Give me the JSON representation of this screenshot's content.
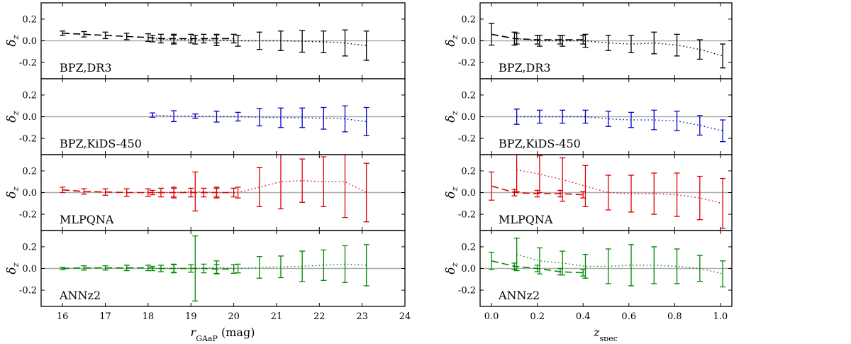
{
  "figure": {
    "left_xlabel_main": "r",
    "left_xlabel_sub": "GAaP",
    "left_xlabel_unit": " (mag)",
    "right_xlabel_main": "z",
    "right_xlabel_sub": "spec",
    "ylabel_main": "δ",
    "ylabel_sub": "z"
  },
  "chart_data": [
    {
      "type": "line",
      "panel": "left",
      "x_range": [
        15.5,
        24
      ],
      "y_range": [
        -0.35,
        0.35
      ],
      "x_ticks": [
        "16",
        "17",
        "18",
        "19",
        "20",
        "21",
        "22",
        "23",
        "24"
      ],
      "x_tick_values": [
        16,
        17,
        18,
        19,
        20,
        21,
        22,
        23,
        24
      ],
      "y_ticks": [
        "0.2",
        "0.0",
        "-0.2"
      ],
      "y_tick_values": [
        0.2,
        0.0,
        -0.2
      ],
      "reference_line": 0,
      "rows": [
        {
          "label": "BPZ,DR3",
          "color": "#000000",
          "dashed": {
            "x": [
              16.0,
              16.5,
              17.0,
              17.5,
              18.0,
              18.3,
              18.6,
              19.0,
              19.3,
              19.6,
              20.0
            ],
            "y": [
              0.07,
              0.06,
              0.05,
              0.04,
              0.03,
              0.02,
              0.02,
              0.02,
              0.02,
              0.02,
              0.02
            ],
            "err": [
              0.02,
              0.025,
              0.03,
              0.03,
              0.035,
              0.04,
              0.04,
              0.04,
              0.04,
              0.04,
              0.04
            ]
          },
          "dotted": {
            "x": [
              18.1,
              18.6,
              19.1,
              19.6,
              20.1,
              20.6,
              21.1,
              21.6,
              22.1,
              22.6,
              23.1
            ],
            "y": [
              0.02,
              0.01,
              0.01,
              0.005,
              0.0,
              0.0,
              0.0,
              -0.005,
              -0.01,
              -0.02,
              -0.045
            ],
            "err": [
              0.03,
              0.04,
              0.04,
              0.05,
              0.05,
              0.08,
              0.09,
              0.1,
              0.1,
              0.12,
              0.135
            ]
          }
        },
        {
          "label": "BPZ,KiDS-450",
          "color": "#0000cc",
          "dotted": {
            "x": [
              18.1,
              18.6,
              19.1,
              19.6,
              20.1,
              20.6,
              21.1,
              21.6,
              22.1,
              22.6,
              23.1
            ],
            "y": [
              0.015,
              0.005,
              0.005,
              0.0,
              0.0,
              -0.005,
              -0.01,
              -0.01,
              -0.015,
              -0.02,
              -0.045
            ],
            "err": [
              0.02,
              0.05,
              0.02,
              0.05,
              0.04,
              0.08,
              0.09,
              0.09,
              0.1,
              0.12,
              0.13
            ]
          }
        },
        {
          "label": "MLPQNA",
          "color": "#dd0000",
          "dashed": {
            "x": [
              16.0,
              16.5,
              17.0,
              17.5,
              18.0,
              18.3,
              18.6,
              19.0,
              19.3,
              19.6,
              20.0
            ],
            "y": [
              0.025,
              0.01,
              0.005,
              0.0,
              0.0,
              0.0,
              0.0,
              0.0,
              0.0,
              0.0,
              0.0
            ],
            "err": [
              0.025,
              0.025,
              0.03,
              0.035,
              0.035,
              0.04,
              0.04,
              0.04,
              0.04,
              0.04,
              0.04
            ]
          },
          "dotted": {
            "x": [
              18.1,
              18.6,
              19.1,
              19.6,
              20.1,
              20.6,
              21.1,
              21.6,
              22.1,
              22.6,
              23.1
            ],
            "y": [
              0.0,
              0.0,
              0.01,
              0.0,
              0.0,
              0.05,
              0.1,
              0.11,
              0.1,
              0.1,
              0.0
            ],
            "err": [
              0.02,
              0.05,
              0.18,
              0.05,
              0.05,
              0.18,
              0.25,
              0.2,
              0.23,
              0.33,
              0.27
            ]
          }
        },
        {
          "label": "ANNz2",
          "color": "#008800",
          "dashed": {
            "x": [
              16.0,
              16.5,
              17.0,
              17.5,
              18.0,
              18.3,
              18.6,
              19.0,
              19.3,
              19.6,
              20.0
            ],
            "y": [
              0.0,
              0.005,
              0.005,
              0.005,
              0.005,
              0.0,
              0.0,
              0.0,
              0.0,
              -0.005,
              -0.005
            ],
            "err": [
              0.01,
              0.02,
              0.02,
              0.025,
              0.025,
              0.03,
              0.035,
              0.035,
              0.04,
              0.04,
              0.04
            ]
          },
          "dotted": {
            "x": [
              18.1,
              18.6,
              19.1,
              19.6,
              20.1,
              20.6,
              21.1,
              21.6,
              22.1,
              22.6,
              23.1
            ],
            "y": [
              0.0,
              0.0,
              0.0,
              0.01,
              0.0,
              0.01,
              0.015,
              0.02,
              0.03,
              0.04,
              0.03
            ],
            "err": [
              0.02,
              0.04,
              0.3,
              0.06,
              0.04,
              0.1,
              0.1,
              0.14,
              0.14,
              0.17,
              0.19
            ]
          }
        }
      ]
    },
    {
      "type": "line",
      "panel": "right",
      "x_range": [
        -0.05,
        1.05
      ],
      "y_range": [
        -0.35,
        0.35
      ],
      "x_ticks": [
        "0.0",
        "0.2",
        "0.4",
        "0.6",
        "0.8",
        "1.0"
      ],
      "x_tick_values": [
        0.0,
        0.2,
        0.4,
        0.6,
        0.8,
        1.0
      ],
      "y_ticks": [
        "0.2",
        "0.0",
        "-0.2"
      ],
      "y_tick_values": [
        0.2,
        0.0,
        -0.2
      ],
      "reference_line": 0,
      "rows": [
        {
          "label": "BPZ,DR3",
          "color": "#000000",
          "dashed": {
            "x": [
              0.0,
              0.1,
              0.2,
              0.3,
              0.4
            ],
            "y": [
              0.06,
              0.02,
              0.01,
              0.01,
              0.01
            ],
            "err": [
              0.1,
              0.06,
              0.04,
              0.04,
              0.04
            ]
          },
          "dotted": {
            "x": [
              0.11,
              0.21,
              0.31,
              0.41,
              0.51,
              0.61,
              0.71,
              0.81,
              0.91,
              1.01
            ],
            "y": [
              0.02,
              0.0,
              0.0,
              0.0,
              -0.02,
              -0.03,
              -0.02,
              -0.04,
              -0.08,
              -0.14
            ],
            "err": [
              0.05,
              0.05,
              0.05,
              0.06,
              0.07,
              0.08,
              0.1,
              0.1,
              0.09,
              0.11
            ]
          }
        },
        {
          "label": "BPZ,KiDS-450",
          "color": "#0000cc",
          "dotted": {
            "x": [
              0.11,
              0.21,
              0.31,
              0.41,
              0.51,
              0.61,
              0.71,
              0.81,
              0.91,
              1.01
            ],
            "y": [
              0.0,
              0.0,
              0.0,
              0.0,
              -0.02,
              -0.03,
              -0.03,
              -0.04,
              -0.08,
              -0.13
            ],
            "err": [
              0.07,
              0.06,
              0.06,
              0.06,
              0.07,
              0.07,
              0.09,
              0.09,
              0.09,
              0.1
            ]
          }
        },
        {
          "label": "MLPQNA",
          "color": "#dd0000",
          "dashed": {
            "x": [
              0.0,
              0.1,
              0.2,
              0.3,
              0.4
            ],
            "y": [
              0.06,
              0.0,
              -0.01,
              -0.01,
              -0.02
            ],
            "err": [
              0.13,
              0.03,
              0.03,
              0.03,
              0.03
            ]
          },
          "dotted": {
            "x": [
              0.11,
              0.21,
              0.31,
              0.41,
              0.51,
              0.61,
              0.71,
              0.81,
              0.91,
              1.01
            ],
            "y": [
              0.21,
              0.17,
              0.12,
              0.06,
              0.0,
              -0.01,
              -0.01,
              -0.02,
              -0.05,
              -0.1
            ],
            "err": [
              0.2,
              0.17,
              0.2,
              0.19,
              0.16,
              0.17,
              0.19,
              0.2,
              0.2,
              0.23
            ]
          }
        },
        {
          "label": "ANNz2",
          "color": "#008800",
          "dashed": {
            "x": [
              0.0,
              0.1,
              0.2,
              0.3,
              0.4
            ],
            "y": [
              0.07,
              0.02,
              0.0,
              -0.03,
              -0.04
            ],
            "err": [
              0.08,
              0.03,
              0.03,
              0.03,
              0.03
            ]
          },
          "dotted": {
            "x": [
              0.11,
              0.21,
              0.31,
              0.41,
              0.51,
              0.61,
              0.71,
              0.81,
              0.91,
              1.01
            ],
            "y": [
              0.13,
              0.07,
              0.05,
              0.02,
              0.02,
              0.03,
              0.03,
              0.02,
              0.0,
              -0.05
            ],
            "err": [
              0.15,
              0.12,
              0.11,
              0.11,
              0.16,
              0.19,
              0.17,
              0.16,
              0.12,
              0.12
            ]
          }
        }
      ]
    }
  ]
}
